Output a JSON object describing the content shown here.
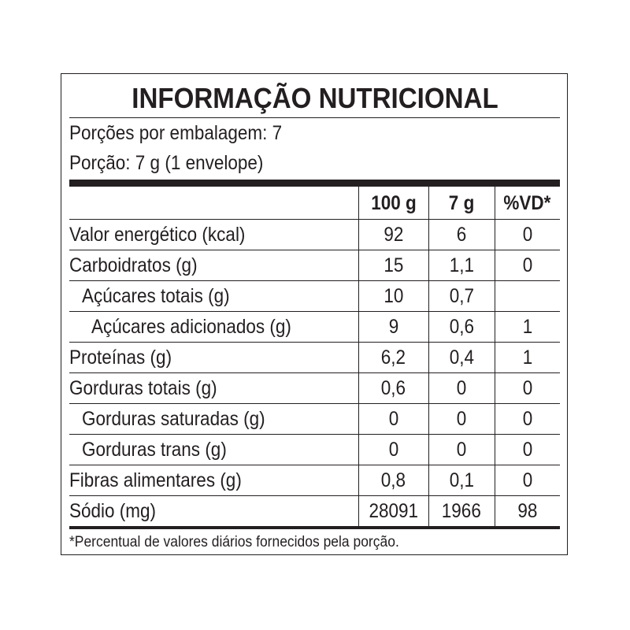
{
  "title": "INFORMAÇÃO NUTRICIONAL",
  "servings_per_package": "Porções por embalagem: 7",
  "serving_size": "Porção: 7 g (1 envelope)",
  "columns": [
    "",
    "100 g",
    "7 g",
    "%VD*"
  ],
  "rows": [
    {
      "label": "Valor energético (kcal)",
      "indent": 0,
      "per100g": "92",
      "perServing": "6",
      "vd": "0"
    },
    {
      "label": "Carboidratos (g)",
      "indent": 0,
      "per100g": "15",
      "perServing": "1,1",
      "vd": "0"
    },
    {
      "label": "Açúcares totais (g)",
      "indent": 1,
      "per100g": "10",
      "perServing": "0,7",
      "vd": ""
    },
    {
      "label": "Açúcares adicionados (g)",
      "indent": 2,
      "per100g": "9",
      "perServing": "0,6",
      "vd": "1"
    },
    {
      "label": "Proteínas (g)",
      "indent": 0,
      "per100g": "6,2",
      "perServing": "0,4",
      "vd": "1"
    },
    {
      "label": "Gorduras totais (g)",
      "indent": 0,
      "per100g": "0,6",
      "perServing": "0",
      "vd": "0"
    },
    {
      "label": "Gorduras saturadas (g)",
      "indent": 1,
      "per100g": "0",
      "perServing": "0",
      "vd": "0"
    },
    {
      "label": "Gorduras trans (g)",
      "indent": 1,
      "per100g": "0",
      "perServing": "0",
      "vd": "0"
    },
    {
      "label": "Fibras alimentares (g)",
      "indent": 0,
      "per100g": "0,8",
      "perServing": "0,1",
      "vd": "0"
    },
    {
      "label": "Sódio (mg)",
      "indent": 0,
      "per100g": "28091",
      "perServing": "1966",
      "vd": "98"
    }
  ],
  "footnote": "*Percentual de valores diários fornecidos pela porção."
}
